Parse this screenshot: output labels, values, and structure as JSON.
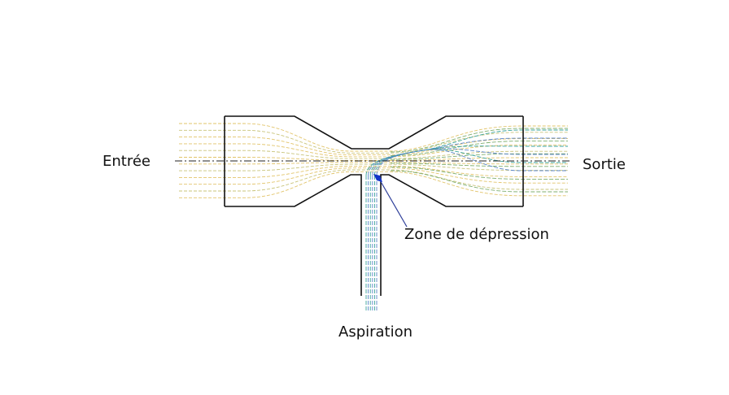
{
  "labels": {
    "inlet": "Entrée",
    "outlet": "Sortie",
    "depression_zone": "Zone de dépression",
    "aspiration": "Aspiration"
  },
  "colors": {
    "outline": "#111111",
    "axis": "#222222",
    "main_flow": "#e2c46a",
    "main_flow_mid": "#c9c47a",
    "mixed_flow": "#7fae6e",
    "suction_flow": "#3aa39a",
    "suction_flow_alt": "#5b86c9",
    "depression_marker": "#1234c8",
    "pointer": "#2e3f9a"
  }
}
